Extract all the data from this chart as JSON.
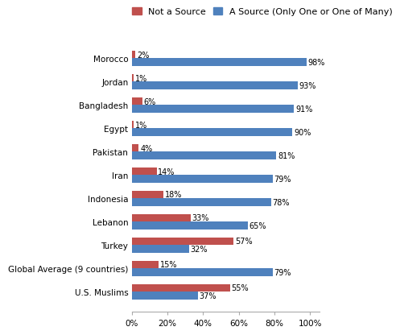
{
  "categories": [
    "Morocco",
    "Jordan",
    "Bangladesh",
    "Egypt",
    "Pakistan",
    "Iran",
    "Indonesia",
    "Lebanon",
    "Turkey",
    "Global Average (9 countries)",
    "U.S. Muslims"
  ],
  "not_a_source": [
    2,
    1,
    6,
    1,
    4,
    14,
    18,
    33,
    57,
    15,
    55
  ],
  "a_source": [
    98,
    93,
    91,
    90,
    81,
    79,
    78,
    65,
    32,
    79,
    37
  ],
  "not_a_source_labels": [
    "2%",
    "1%",
    "6%",
    "1%",
    "4%",
    "14%",
    "18%",
    "33%",
    "57%",
    "15%",
    "55%"
  ],
  "a_source_labels": [
    "98%",
    "93%",
    "91%",
    "90%",
    "81%",
    "79%",
    "78%",
    "65%",
    "32%",
    "79%",
    "37%"
  ],
  "color_not_a_source": "#C0504D",
  "color_a_source": "#4F81BD",
  "legend_not_a_source": "Not a Source",
  "legend_a_source": "A Source (Only One or One of Many)",
  "xlim": [
    0,
    105
  ],
  "xlabel_ticks": [
    0,
    20,
    40,
    60,
    80,
    100
  ],
  "xlabel_tick_labels": [
    "0%",
    "20%",
    "40%",
    "60%",
    "80%",
    "100%"
  ],
  "bar_height": 0.32,
  "label_fontsize": 7.0,
  "tick_fontsize": 7.5,
  "legend_fontsize": 8.0,
  "background_color": "#ffffff"
}
